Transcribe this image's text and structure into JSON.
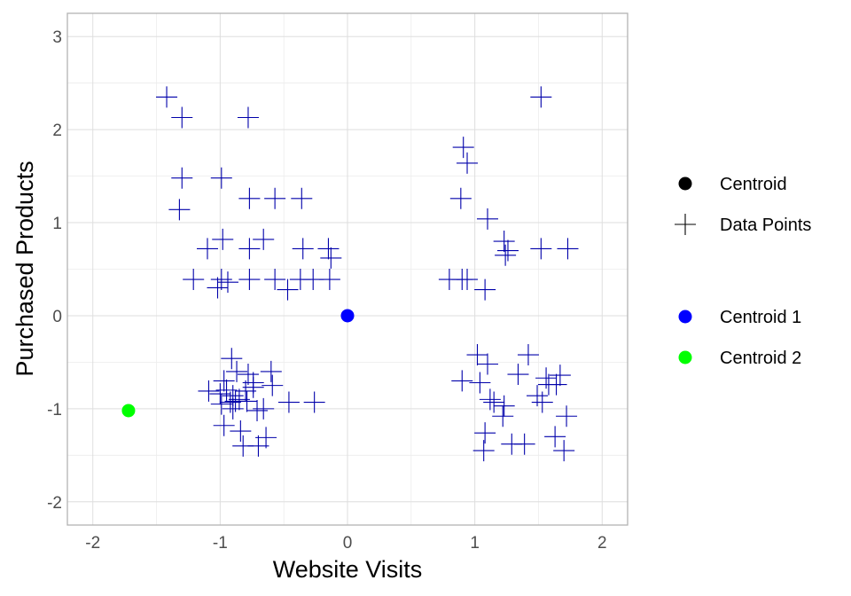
{
  "chart_data": {
    "type": "scatter",
    "title": "",
    "xlabel": "Website Visits",
    "ylabel": "Purchased Products",
    "xlim": [
      -2.2,
      2.2
    ],
    "ylim": [
      -2.25,
      3.25
    ],
    "x_ticks": [
      -2,
      -1,
      0,
      1,
      2
    ],
    "y_ticks": [
      -2,
      -1,
      0,
      1,
      2,
      3
    ],
    "x_tick_labels": [
      "-2",
      "-1",
      "0",
      "1",
      "2"
    ],
    "y_tick_labels": [
      "-2",
      "-1",
      "0",
      "1",
      "2",
      "3"
    ],
    "grid": true,
    "legend_position": "right",
    "legend": {
      "shape_title": "",
      "shape_entries": [
        {
          "label": "Centroid",
          "marker": "filled-circle",
          "color": "#000000"
        },
        {
          "label": "Data Points",
          "marker": "plus",
          "color": "#000000"
        }
      ],
      "color_entries": [
        {
          "label": "Centroid 1",
          "marker": "filled-circle",
          "color": "#0000ff"
        },
        {
          "label": "Centroid 2",
          "marker": "filled-circle",
          "color": "#00ff00"
        }
      ]
    },
    "series": [
      {
        "name": "Data Points",
        "marker": "plus",
        "color": "#0000aa",
        "points": [
          [
            -1.42,
            2.35
          ],
          [
            -1.3,
            2.13
          ],
          [
            -0.78,
            2.13
          ],
          [
            -1.3,
            1.48
          ],
          [
            -0.99,
            1.48
          ],
          [
            -1.32,
            1.14
          ],
          [
            -0.77,
            1.26
          ],
          [
            -0.57,
            1.26
          ],
          [
            -0.36,
            1.26
          ],
          [
            -1.1,
            0.72
          ],
          [
            -0.98,
            0.82
          ],
          [
            -0.66,
            0.82
          ],
          [
            -0.77,
            0.72
          ],
          [
            -0.35,
            0.72
          ],
          [
            -0.15,
            0.72
          ],
          [
            -0.13,
            0.62
          ],
          [
            -1.21,
            0.39
          ],
          [
            -1.02,
            0.3
          ],
          [
            -0.99,
            0.39
          ],
          [
            -0.94,
            0.36
          ],
          [
            -0.77,
            0.39
          ],
          [
            -0.57,
            0.39
          ],
          [
            -0.47,
            0.28
          ],
          [
            -0.37,
            0.39
          ],
          [
            -0.27,
            0.39
          ],
          [
            -0.14,
            0.39
          ],
          [
            -0.91,
            -0.46
          ],
          [
            -0.97,
            -0.7
          ],
          [
            -0.87,
            -0.6
          ],
          [
            -0.78,
            -0.63
          ],
          [
            -0.74,
            -0.72
          ],
          [
            -0.6,
            -0.6
          ],
          [
            -0.59,
            -0.75
          ],
          [
            -0.74,
            -0.77
          ],
          [
            -1.09,
            -0.81
          ],
          [
            -1.0,
            -0.84
          ],
          [
            -0.95,
            -0.8
          ],
          [
            -0.9,
            -0.86
          ],
          [
            -0.88,
            -0.92
          ],
          [
            -0.85,
            -0.9
          ],
          [
            -0.8,
            -0.81
          ],
          [
            -0.92,
            -0.93
          ],
          [
            -0.9,
            -1.0
          ],
          [
            -0.79,
            -0.92
          ],
          [
            -0.71,
            -1.02
          ],
          [
            -0.66,
            -1.0
          ],
          [
            -0.46,
            -0.93
          ],
          [
            -0.26,
            -0.93
          ],
          [
            -0.97,
            -1.18
          ],
          [
            -0.84,
            -1.24
          ],
          [
            -0.82,
            -1.4
          ],
          [
            -0.7,
            -1.4
          ],
          [
            -0.64,
            -1.31
          ],
          [
            -0.99,
            -0.95
          ],
          [
            0.91,
            1.81
          ],
          [
            0.94,
            1.64
          ],
          [
            0.89,
            1.26
          ],
          [
            1.1,
            1.04
          ],
          [
            1.23,
            0.8
          ],
          [
            1.26,
            0.7
          ],
          [
            1.24,
            0.65
          ],
          [
            1.52,
            0.72
          ],
          [
            1.73,
            0.72
          ],
          [
            0.8,
            0.39
          ],
          [
            0.9,
            0.39
          ],
          [
            0.94,
            0.39
          ],
          [
            1.08,
            0.28
          ],
          [
            1.52,
            2.35
          ],
          [
            1.02,
            -0.42
          ],
          [
            1.1,
            -0.52
          ],
          [
            0.9,
            -0.7
          ],
          [
            1.04,
            -0.72
          ],
          [
            1.12,
            -0.9
          ],
          [
            1.15,
            -0.93
          ],
          [
            1.23,
            -0.97
          ],
          [
            1.22,
            -1.08
          ],
          [
            1.34,
            -0.63
          ],
          [
            1.42,
            -0.42
          ],
          [
            1.49,
            -0.86
          ],
          [
            1.53,
            -0.93
          ],
          [
            1.56,
            -0.67
          ],
          [
            1.58,
            -0.74
          ],
          [
            1.64,
            -0.74
          ],
          [
            1.67,
            -0.64
          ],
          [
            1.72,
            -1.08
          ],
          [
            1.08,
            -1.26
          ],
          [
            1.07,
            -1.45
          ],
          [
            1.29,
            -1.38
          ],
          [
            1.39,
            -1.38
          ],
          [
            1.63,
            -1.3
          ],
          [
            1.7,
            -1.45
          ]
        ]
      },
      {
        "name": "Centroid 1",
        "marker": "filled-circle",
        "color": "#0000ff",
        "points": [
          [
            0.0,
            0.0
          ]
        ]
      },
      {
        "name": "Centroid 2",
        "marker": "filled-circle",
        "color": "#00ff00",
        "points": [
          [
            -1.72,
            -1.02
          ]
        ]
      }
    ]
  }
}
